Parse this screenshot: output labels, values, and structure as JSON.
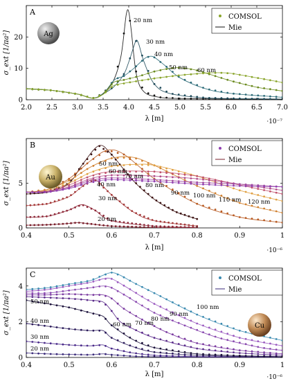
{
  "chart_data": [
    {
      "type": "line",
      "panel_label": "A",
      "metal_label": "Ag",
      "ylabel": "σ_ext [1/πa²]",
      "xlabel": "λ [m]",
      "x_exponent": "·10⁻⁷",
      "xlim": [
        2.0,
        7.0
      ],
      "ylim": [
        0,
        30
      ],
      "xticks": [
        "2.0",
        "2.5",
        "3.0",
        "3.5",
        "4.0",
        "4.5",
        "5.0",
        "5.5",
        "6.0",
        "6.5",
        "7.0"
      ],
      "yticks": [
        "0",
        "10",
        "20"
      ],
      "legend": {
        "position": "top-right",
        "marker_label": "COMSOL",
        "line_label": "Mie"
      },
      "series": [
        {
          "name": "20 nm",
          "color": "#111111",
          "x": [
            2.0,
            2.5,
            3.0,
            3.3,
            3.5,
            3.7,
            3.85,
            3.95,
            4.0,
            4.05,
            4.15,
            4.3,
            4.6,
            5.0,
            6.0,
            7.0
          ],
          "y": [
            3.5,
            3.0,
            1.8,
            0.5,
            2.0,
            6.0,
            14.0,
            27.0,
            28.0,
            22.0,
            8.0,
            2.5,
            0.8,
            0.4,
            0.2,
            0.1
          ]
        },
        {
          "name": "30 nm",
          "color": "#1e4a5a",
          "x": [
            2.0,
            2.5,
            3.0,
            3.3,
            3.5,
            3.7,
            3.9,
            4.0,
            4.1,
            4.15,
            4.2,
            4.3,
            4.5,
            4.8,
            5.5,
            6.5,
            7.0
          ],
          "y": [
            3.5,
            3.0,
            1.8,
            0.5,
            1.9,
            4.0,
            8.0,
            12.0,
            17.0,
            19.0,
            17.5,
            12.0,
            5.0,
            2.0,
            0.6,
            0.3,
            0.2
          ]
        },
        {
          "name": "40 nm",
          "color": "#2b6a78",
          "x": [
            2.0,
            2.5,
            3.0,
            3.3,
            3.5,
            3.7,
            3.8,
            3.9,
            4.1,
            4.3,
            4.4,
            4.5,
            4.7,
            5.0,
            5.5,
            6.0,
            7.0
          ],
          "y": [
            3.5,
            3.0,
            1.8,
            0.5,
            1.9,
            6.0,
            7.0,
            7.5,
            10.0,
            13.0,
            13.8,
            13.5,
            11.0,
            7.0,
            3.5,
            2.0,
            0.8
          ]
        },
        {
          "name": "50 nm",
          "color": "#6a8a1e",
          "x": [
            2.0,
            2.5,
            3.0,
            3.3,
            3.5,
            3.7,
            3.9,
            4.2,
            4.5,
            4.8,
            5.0,
            5.3,
            5.6,
            6.0,
            6.5,
            7.0
          ],
          "y": [
            3.5,
            3.0,
            1.8,
            0.5,
            1.8,
            5.5,
            6.3,
            7.5,
            9.0,
            10.0,
            10.2,
            9.5,
            8.0,
            6.0,
            4.0,
            2.8
          ]
        },
        {
          "name": "60 nm",
          "color": "#8aa52b",
          "x": [
            2.0,
            2.5,
            3.0,
            3.3,
            3.5,
            3.7,
            4.0,
            4.5,
            5.0,
            5.5,
            5.8,
            6.0,
            6.5,
            7.0
          ],
          "y": [
            3.5,
            3.0,
            1.8,
            0.5,
            1.7,
            4.5,
            5.5,
            6.8,
            7.8,
            8.5,
            8.6,
            8.4,
            7.0,
            5.5
          ]
        }
      ]
    },
    {
      "type": "line",
      "panel_label": "B",
      "metal_label": "Au",
      "ylabel": "σ_ext [1/πa²]",
      "xlabel": "λ [m]",
      "x_exponent": "·10⁻⁶",
      "xlim": [
        0.4,
        1.0
      ],
      "ylim": [
        0,
        10
      ],
      "xticks": [
        "0.4",
        "0.5",
        "0.6",
        "0.7",
        "0.8",
        "0.9",
        "1"
      ],
      "yticks": [
        "0",
        "5"
      ],
      "legend": {
        "position": "top-right",
        "marker_label": "COMSOL",
        "line_label": "Mie"
      },
      "series": [
        {
          "name": "20 nm",
          "color": "#7a1f2b",
          "x": [
            0.4,
            0.45,
            0.5,
            0.52,
            0.55,
            0.6,
            0.7,
            0.8
          ],
          "y": [
            0.3,
            0.35,
            0.5,
            0.6,
            0.45,
            0.2,
            0.05,
            0.02
          ]
        },
        {
          "name": "30 nm",
          "color": "#8f2a3a",
          "x": [
            0.4,
            0.45,
            0.5,
            0.53,
            0.56,
            0.6,
            0.7,
            0.8
          ],
          "y": [
            1.2,
            1.3,
            2.0,
            2.6,
            2.0,
            0.8,
            0.2,
            0.05
          ]
        },
        {
          "name": "40 nm",
          "color": "#a53a3a",
          "x": [
            0.4,
            0.45,
            0.5,
            0.53,
            0.56,
            0.6,
            0.65,
            0.7,
            0.8
          ],
          "y": [
            2.5,
            2.7,
            3.5,
            4.6,
            5.4,
            3.7,
            1.8,
            0.8,
            0.2
          ]
        },
        {
          "name": "50 nm",
          "color": "#3a1010",
          "x": [
            0.4,
            0.45,
            0.5,
            0.53,
            0.57,
            0.6,
            0.65,
            0.7,
            0.75,
            0.8
          ],
          "y": [
            3.8,
            4.0,
            5.0,
            7.0,
            9.2,
            8.2,
            5.3,
            3.2,
            1.8,
            1.0
          ]
        },
        {
          "name": "60 nm",
          "color": "#b85a22",
          "x": [
            0.4,
            0.45,
            0.5,
            0.55,
            0.59,
            0.63,
            0.7,
            0.8,
            0.9,
            1.0
          ],
          "y": [
            4.0,
            4.3,
            5.5,
            7.5,
            8.7,
            8.2,
            5.5,
            2.7,
            1.2,
            0.6
          ]
        },
        {
          "name": "70 nm",
          "color": "#d0802f",
          "x": [
            0.4,
            0.45,
            0.5,
            0.55,
            0.6,
            0.65,
            0.7,
            0.8,
            0.9,
            1.0
          ],
          "y": [
            4.0,
            4.3,
            5.3,
            6.8,
            7.8,
            7.9,
            7.0,
            4.7,
            2.8,
            1.7
          ]
        },
        {
          "name": "80 nm",
          "color": "#e0a040",
          "x": [
            0.4,
            0.45,
            0.5,
            0.55,
            0.6,
            0.65,
            0.7,
            0.8,
            0.9,
            1.0
          ],
          "y": [
            4.0,
            4.2,
            5.0,
            6.2,
            6.9,
            7.1,
            7.0,
            5.8,
            4.2,
            3.0
          ]
        },
        {
          "name": "90 nm",
          "color": "#c0506a",
          "x": [
            0.4,
            0.45,
            0.5,
            0.55,
            0.6,
            0.7,
            0.8,
            0.9,
            1.0
          ],
          "y": [
            4.0,
            4.1,
            4.8,
            5.8,
            6.3,
            6.3,
            5.8,
            4.8,
            3.8
          ]
        },
        {
          "name": "100 nm",
          "color": "#b04a88",
          "x": [
            0.4,
            0.45,
            0.5,
            0.55,
            0.6,
            0.7,
            0.8,
            0.9,
            1.0
          ],
          "y": [
            4.0,
            4.1,
            4.6,
            5.5,
            5.9,
            5.8,
            5.5,
            4.9,
            4.2
          ]
        },
        {
          "name": "110 nm",
          "color": "#a04aa0",
          "x": [
            0.4,
            0.45,
            0.5,
            0.55,
            0.6,
            0.7,
            0.8,
            0.9,
            1.0
          ],
          "y": [
            4.0,
            4.0,
            4.5,
            5.3,
            5.6,
            5.4,
            5.1,
            4.9,
            4.6
          ]
        },
        {
          "name": "120 nm",
          "color": "#9040b0",
          "x": [
            0.4,
            0.45,
            0.5,
            0.55,
            0.6,
            0.7,
            0.8,
            0.9,
            1.0
          ],
          "y": [
            4.0,
            4.0,
            4.4,
            5.1,
            5.4,
            5.2,
            4.9,
            4.7,
            4.6
          ]
        }
      ]
    },
    {
      "type": "line",
      "panel_label": "C",
      "metal_label": "Cu",
      "ylabel": "σ_ext [1/πa²]",
      "xlabel": "λ [m]",
      "x_exponent": "·10⁻⁶",
      "xlim": [
        0.4,
        1.0
      ],
      "ylim": [
        0,
        5
      ],
      "xticks": [
        "0.4",
        "0.5",
        "0.6",
        "0.7",
        "0.8",
        "0.9",
        "1"
      ],
      "yticks": [
        "0",
        "2",
        "4"
      ],
      "legend": {
        "position": "top-right",
        "marker_label": "COMSOL",
        "line_label": "Mie"
      },
      "series": [
        {
          "name": "20 nm",
          "color": "#3a2a7a",
          "x": [
            0.4,
            0.45,
            0.5,
            0.55,
            0.58,
            0.6,
            0.65,
            0.7,
            0.8,
            0.9,
            1.0
          ],
          "y": [
            0.25,
            0.2,
            0.17,
            0.15,
            0.2,
            0.15,
            0.07,
            0.04,
            0.02,
            0.01,
            0.01
          ]
        },
        {
          "name": "30 nm",
          "color": "#4a2a8a",
          "x": [
            0.4,
            0.45,
            0.5,
            0.55,
            0.58,
            0.6,
            0.65,
            0.7,
            0.8,
            0.9,
            1.0
          ],
          "y": [
            0.9,
            0.8,
            0.7,
            0.65,
            0.7,
            0.5,
            0.25,
            0.12,
            0.05,
            0.03,
            0.02
          ]
        },
        {
          "name": "40 nm",
          "color": "#2a1a5a",
          "x": [
            0.4,
            0.45,
            0.5,
            0.55,
            0.58,
            0.6,
            0.65,
            0.7,
            0.8,
            0.9,
            1.0
          ],
          "y": [
            1.9,
            1.75,
            1.6,
            1.5,
            1.5,
            1.1,
            0.6,
            0.3,
            0.12,
            0.06,
            0.03
          ]
        },
        {
          "name": "50 nm",
          "color": "#1a103a",
          "x": [
            0.4,
            0.45,
            0.5,
            0.55,
            0.58,
            0.6,
            0.65,
            0.7,
            0.8,
            0.9,
            1.0
          ],
          "y": [
            3.2,
            3.0,
            2.8,
            2.5,
            2.3,
            1.8,
            1.0,
            0.55,
            0.2,
            0.1,
            0.05
          ]
        },
        {
          "name": "60 nm",
          "color": "#5a2a8a",
          "x": [
            0.4,
            0.45,
            0.5,
            0.55,
            0.58,
            0.6,
            0.62,
            0.65,
            0.7,
            0.8,
            0.9,
            1.0
          ],
          "y": [
            3.4,
            3.35,
            3.3,
            3.2,
            3.1,
            2.6,
            2.0,
            1.6,
            1.1,
            0.5,
            0.25,
            0.12
          ]
        },
        {
          "name": "70 nm",
          "color": "#7a3aa0",
          "x": [
            0.4,
            0.45,
            0.5,
            0.55,
            0.58,
            0.6,
            0.63,
            0.68,
            0.73,
            0.8,
            0.9,
            1.0
          ],
          "y": [
            3.5,
            3.5,
            3.55,
            3.5,
            3.5,
            3.3,
            2.7,
            2.0,
            1.4,
            0.8,
            0.4,
            0.2
          ]
        },
        {
          "name": "80 nm",
          "color": "#8a4ab0",
          "x": [
            0.4,
            0.45,
            0.5,
            0.55,
            0.58,
            0.6,
            0.63,
            0.7,
            0.77,
            0.85,
            0.95,
            1.0
          ],
          "y": [
            3.6,
            3.6,
            3.75,
            3.9,
            4.0,
            3.9,
            3.5,
            2.5,
            1.8,
            1.1,
            0.55,
            0.4
          ]
        },
        {
          "name": "90 nm",
          "color": "#9a5ac0",
          "x": [
            0.4,
            0.45,
            0.5,
            0.55,
            0.58,
            0.6,
            0.63,
            0.7,
            0.8,
            0.9,
            1.0
          ],
          "y": [
            3.7,
            3.8,
            4.0,
            4.2,
            4.4,
            4.4,
            4.0,
            3.0,
            1.9,
            1.1,
            0.65
          ]
        },
        {
          "name": "100 nm",
          "color": "#3a8ab0",
          "x": [
            0.4,
            0.45,
            0.5,
            0.55,
            0.58,
            0.6,
            0.62,
            0.65,
            0.7,
            0.8,
            0.9,
            1.0
          ],
          "y": [
            3.8,
            3.9,
            4.1,
            4.3,
            4.6,
            4.75,
            4.6,
            4.2,
            3.6,
            2.4,
            1.5,
            0.95
          ]
        }
      ],
      "label_positions_note": ""
    }
  ]
}
